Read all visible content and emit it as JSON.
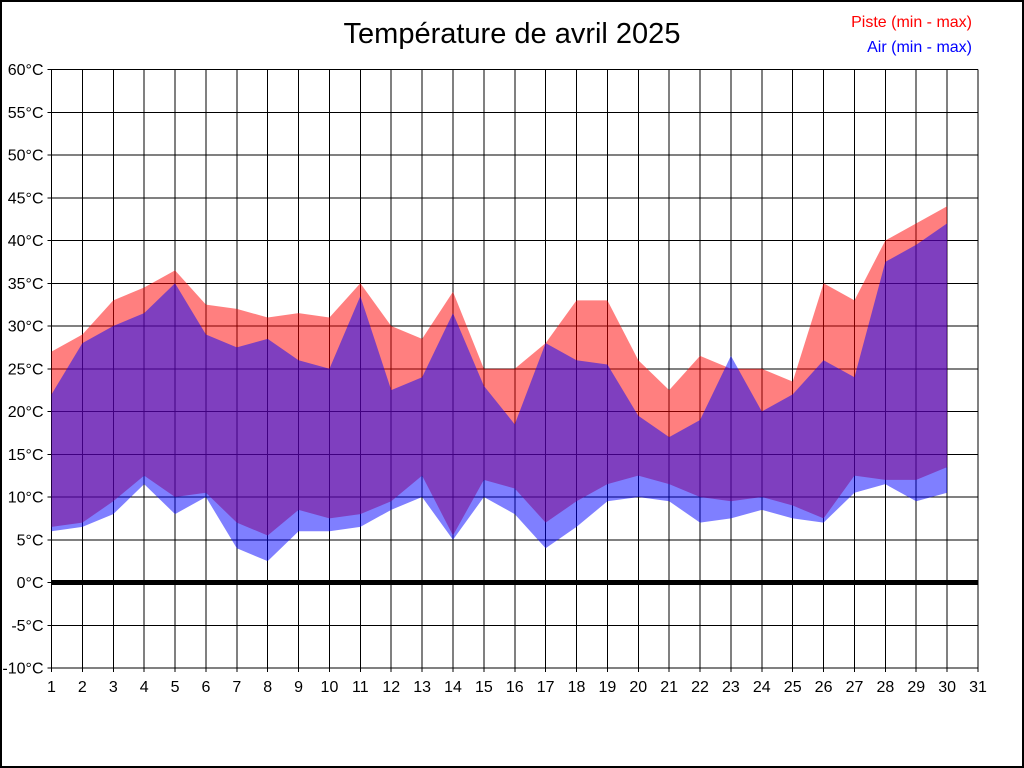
{
  "legend": {
    "items": [
      {
        "label": "Piste (min - max)",
        "color": "#FF0000"
      },
      {
        "label": "Air (min - max)",
        "color": "#0000FF"
      }
    ]
  },
  "chart_data": {
    "type": "area",
    "title": "Température de avril 2025",
    "xlabel": "",
    "ylabel": "",
    "x_days": [
      1,
      2,
      3,
      4,
      5,
      6,
      7,
      8,
      9,
      10,
      11,
      12,
      13,
      14,
      15,
      16,
      17,
      18,
      19,
      20,
      21,
      22,
      23,
      24,
      25,
      26,
      27,
      28,
      29,
      30
    ],
    "xticks": [
      1,
      2,
      3,
      4,
      5,
      6,
      7,
      8,
      9,
      10,
      11,
      12,
      13,
      14,
      15,
      16,
      17,
      18,
      19,
      20,
      21,
      22,
      23,
      24,
      25,
      26,
      27,
      28,
      29,
      30,
      31
    ],
    "ylim": [
      -10,
      60
    ],
    "ytick_step": 5,
    "ytick_suffix": "°C",
    "grid": true,
    "grid_color": "#000000",
    "background": "#FFFFFF",
    "zero_line": {
      "value": 0,
      "color": "#000000",
      "width": 5
    },
    "legend_position": "top-right",
    "series": [
      {
        "name": "Piste (min - max)",
        "band": "min-max",
        "color": "#FF0000",
        "opacity": 0.5,
        "max": [
          27,
          29,
          33,
          34.5,
          36.5,
          32.5,
          32,
          31,
          31.5,
          31,
          35,
          30,
          28.5,
          34,
          25,
          25,
          28,
          33,
          33,
          26,
          22.5,
          26.5,
          25,
          25,
          23.5,
          35,
          33,
          40,
          42,
          44
        ],
        "min": [
          6.5,
          7,
          9.5,
          12.5,
          10,
          10.5,
          7,
          5.5,
          8.5,
          7.5,
          8,
          9.5,
          12.5,
          5.5,
          12,
          11,
          7,
          9.5,
          11.5,
          12.5,
          11.5,
          10,
          9.5,
          10,
          9,
          7.5,
          12.5,
          12,
          12,
          13.5
        ]
      },
      {
        "name": "Air (min - max)",
        "band": "min-max",
        "color": "#0000FF",
        "opacity": 0.5,
        "max": [
          22,
          28,
          30,
          31.5,
          35,
          29,
          27.5,
          28.5,
          26,
          25,
          33.5,
          22.5,
          24,
          31.5,
          23,
          18.5,
          28,
          26,
          25.5,
          19.5,
          17,
          19,
          26.5,
          20,
          22,
          26,
          24,
          37.5,
          39.5,
          42
        ],
        "min": [
          6,
          6.5,
          8,
          11.5,
          8,
          10,
          4,
          2.5,
          6,
          6,
          6.5,
          8.5,
          10,
          5,
          10,
          8,
          4,
          6.5,
          9.5,
          10,
          9.5,
          7,
          7.5,
          8.5,
          7.5,
          7,
          10.5,
          11.5,
          9.5,
          10.5
        ]
      }
    ]
  }
}
